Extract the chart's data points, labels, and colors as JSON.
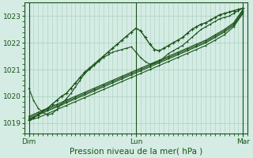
{
  "xlabel": "Pression niveau de la mer( hPa )",
  "bg_color": "#d4ece4",
  "grid_color": "#aacfbe",
  "line_color_dark": "#1a5218",
  "ylim": [
    1018.6,
    1023.5
  ],
  "xlim": [
    0,
    96
  ],
  "yticks": [
    1019,
    1020,
    1021,
    1022,
    1023
  ],
  "xtick_labels": [
    "Dim",
    "Lun",
    "Mar"
  ],
  "xtick_positions": [
    2,
    48,
    94
  ],
  "fontsize_label": 7.5,
  "fontsize_tick": 6.5,
  "marker_size": 2.0,
  "line_width": 0.8,
  "lines": {
    "linear1": {
      "x": [
        2,
        6,
        10,
        14,
        18,
        22,
        26,
        30,
        34,
        38,
        42,
        46,
        50,
        54,
        58,
        62,
        66,
        70,
        74,
        78,
        82,
        86,
        90,
        94
      ],
      "y": [
        1019.1,
        1019.2,
        1019.35,
        1019.5,
        1019.65,
        1019.8,
        1019.95,
        1020.1,
        1020.25,
        1020.4,
        1020.55,
        1020.7,
        1020.85,
        1021.0,
        1021.15,
        1021.3,
        1021.45,
        1021.6,
        1021.75,
        1021.9,
        1022.1,
        1022.3,
        1022.6,
        1023.1
      ]
    },
    "linear2": {
      "x": [
        2,
        6,
        10,
        14,
        18,
        22,
        26,
        30,
        34,
        38,
        42,
        46,
        50,
        54,
        58,
        62,
        66,
        70,
        74,
        78,
        82,
        86,
        90,
        94
      ],
      "y": [
        1019.15,
        1019.3,
        1019.45,
        1019.6,
        1019.75,
        1019.9,
        1020.05,
        1020.2,
        1020.35,
        1020.5,
        1020.65,
        1020.8,
        1020.95,
        1021.1,
        1021.25,
        1021.4,
        1021.55,
        1021.7,
        1021.85,
        1022.0,
        1022.2,
        1022.4,
        1022.65,
        1023.15
      ]
    },
    "linear3": {
      "x": [
        2,
        6,
        10,
        14,
        18,
        22,
        26,
        30,
        34,
        38,
        42,
        46,
        50,
        54,
        58,
        62,
        66,
        70,
        74,
        78,
        82,
        86,
        90,
        94
      ],
      "y": [
        1019.2,
        1019.35,
        1019.5,
        1019.65,
        1019.8,
        1019.95,
        1020.1,
        1020.25,
        1020.4,
        1020.55,
        1020.7,
        1020.85,
        1021.0,
        1021.15,
        1021.3,
        1021.45,
        1021.6,
        1021.75,
        1021.9,
        1022.05,
        1022.25,
        1022.45,
        1022.7,
        1023.2
      ]
    },
    "linear4": {
      "x": [
        2,
        6,
        10,
        14,
        18,
        22,
        26,
        30,
        34,
        38,
        42,
        46,
        50,
        54,
        58,
        62,
        66,
        70,
        74,
        78,
        82,
        86,
        90,
        94
      ],
      "y": [
        1019.25,
        1019.4,
        1019.55,
        1019.7,
        1019.85,
        1020.0,
        1020.15,
        1020.3,
        1020.45,
        1020.6,
        1020.75,
        1020.9,
        1021.05,
        1021.2,
        1021.35,
        1021.5,
        1021.65,
        1021.8,
        1021.95,
        1022.1,
        1022.3,
        1022.5,
        1022.75,
        1023.25
      ]
    },
    "wavy": {
      "x": [
        2,
        4,
        6,
        8,
        10,
        12,
        14,
        16,
        18,
        20,
        22,
        24,
        26,
        28,
        30,
        32,
        34,
        36,
        38,
        40,
        42,
        44,
        46,
        48,
        50,
        52,
        54,
        56,
        58,
        60,
        62,
        64,
        66,
        68,
        70,
        72,
        74,
        76,
        78,
        80,
        82,
        84,
        86,
        88,
        90,
        92,
        94
      ],
      "y": [
        1019.1,
        1019.2,
        1019.3,
        1019.45,
        1019.55,
        1019.7,
        1019.85,
        1020.0,
        1020.1,
        1020.3,
        1020.5,
        1020.7,
        1020.9,
        1021.05,
        1021.2,
        1021.35,
        1021.5,
        1021.65,
        1021.8,
        1021.95,
        1022.1,
        1022.25,
        1022.4,
        1022.55,
        1022.45,
        1022.2,
        1021.95,
        1021.75,
        1021.7,
        1021.8,
        1021.9,
        1022.0,
        1022.1,
        1022.2,
        1022.35,
        1022.5,
        1022.6,
        1022.7,
        1022.75,
        1022.85,
        1022.95,
        1023.05,
        1023.1,
        1023.15,
        1023.2,
        1023.25,
        1023.3
      ]
    },
    "vwavy": {
      "x": [
        2,
        4,
        6,
        8,
        10,
        12,
        14,
        16,
        18,
        20,
        22,
        24,
        26,
        28,
        30,
        32,
        34,
        36,
        38,
        40,
        42,
        44,
        46,
        48,
        50,
        52,
        54,
        56,
        58,
        60,
        62,
        64,
        66,
        68,
        70,
        72,
        74,
        76,
        78,
        80,
        82,
        84,
        86,
        88,
        90,
        92,
        94
      ],
      "y": [
        1020.3,
        1019.85,
        1019.55,
        1019.4,
        1019.3,
        1019.35,
        1019.5,
        1019.7,
        1019.9,
        1020.1,
        1020.35,
        1020.6,
        1020.85,
        1021.0,
        1021.15,
        1021.3,
        1021.45,
        1021.55,
        1021.65,
        1021.7,
        1021.75,
        1021.8,
        1021.85,
        1021.65,
        1021.45,
        1021.3,
        1021.2,
        1021.25,
        1021.3,
        1021.45,
        1021.6,
        1021.7,
        1021.8,
        1021.9,
        1022.05,
        1022.2,
        1022.35,
        1022.5,
        1022.6,
        1022.7,
        1022.8,
        1022.9,
        1022.95,
        1023.0,
        1023.1,
        1023.2,
        1023.3
      ]
    }
  }
}
